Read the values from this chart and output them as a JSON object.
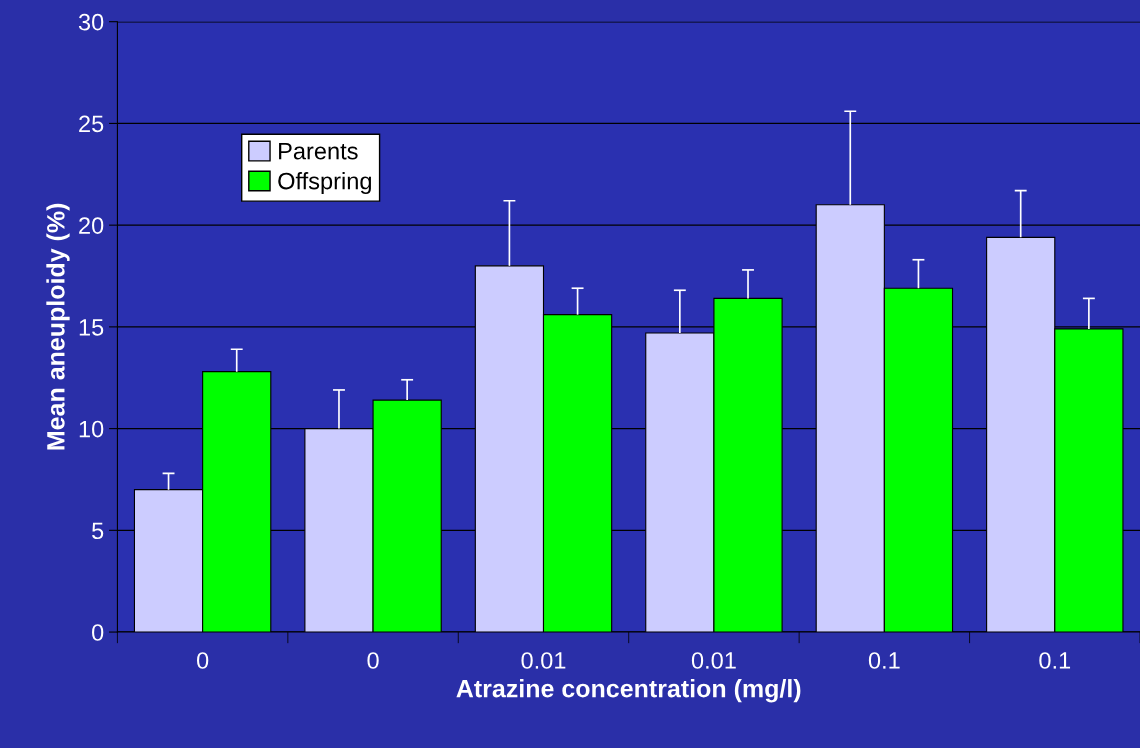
{
  "chart_data": {
    "type": "bar",
    "xlabel": "Atrazine concentration (mg/l)",
    "ylabel": "Mean aneuploidy (%)",
    "categories": [
      "0",
      "0",
      "0.01",
      "0.01",
      "0.1",
      "0.1"
    ],
    "series": [
      {
        "name": "Parents",
        "color": "#ccccff",
        "values": [
          7.0,
          10.0,
          18.0,
          14.7,
          21.0,
          19.4
        ],
        "errors": [
          [
            7.0,
            7.8
          ],
          [
            10.0,
            11.9
          ],
          [
            18.0,
            21.2
          ],
          [
            14.7,
            16.8
          ],
          [
            21.0,
            25.6
          ],
          [
            19.4,
            21.7
          ]
        ]
      },
      {
        "name": "Offspring",
        "color": "#00ff00",
        "values": [
          12.8,
          11.4,
          15.6,
          16.4,
          16.9,
          14.9
        ],
        "errors": [
          [
            12.8,
            13.9
          ],
          [
            11.4,
            12.4
          ],
          [
            15.6,
            16.9
          ],
          [
            16.4,
            17.8
          ],
          [
            16.9,
            18.3
          ],
          [
            14.9,
            16.4
          ]
        ]
      }
    ],
    "ylim": [
      0,
      30
    ],
    "yticks": [
      0,
      5,
      10,
      15,
      20,
      25,
      30
    ],
    "grid": "y",
    "legend": "top left"
  }
}
